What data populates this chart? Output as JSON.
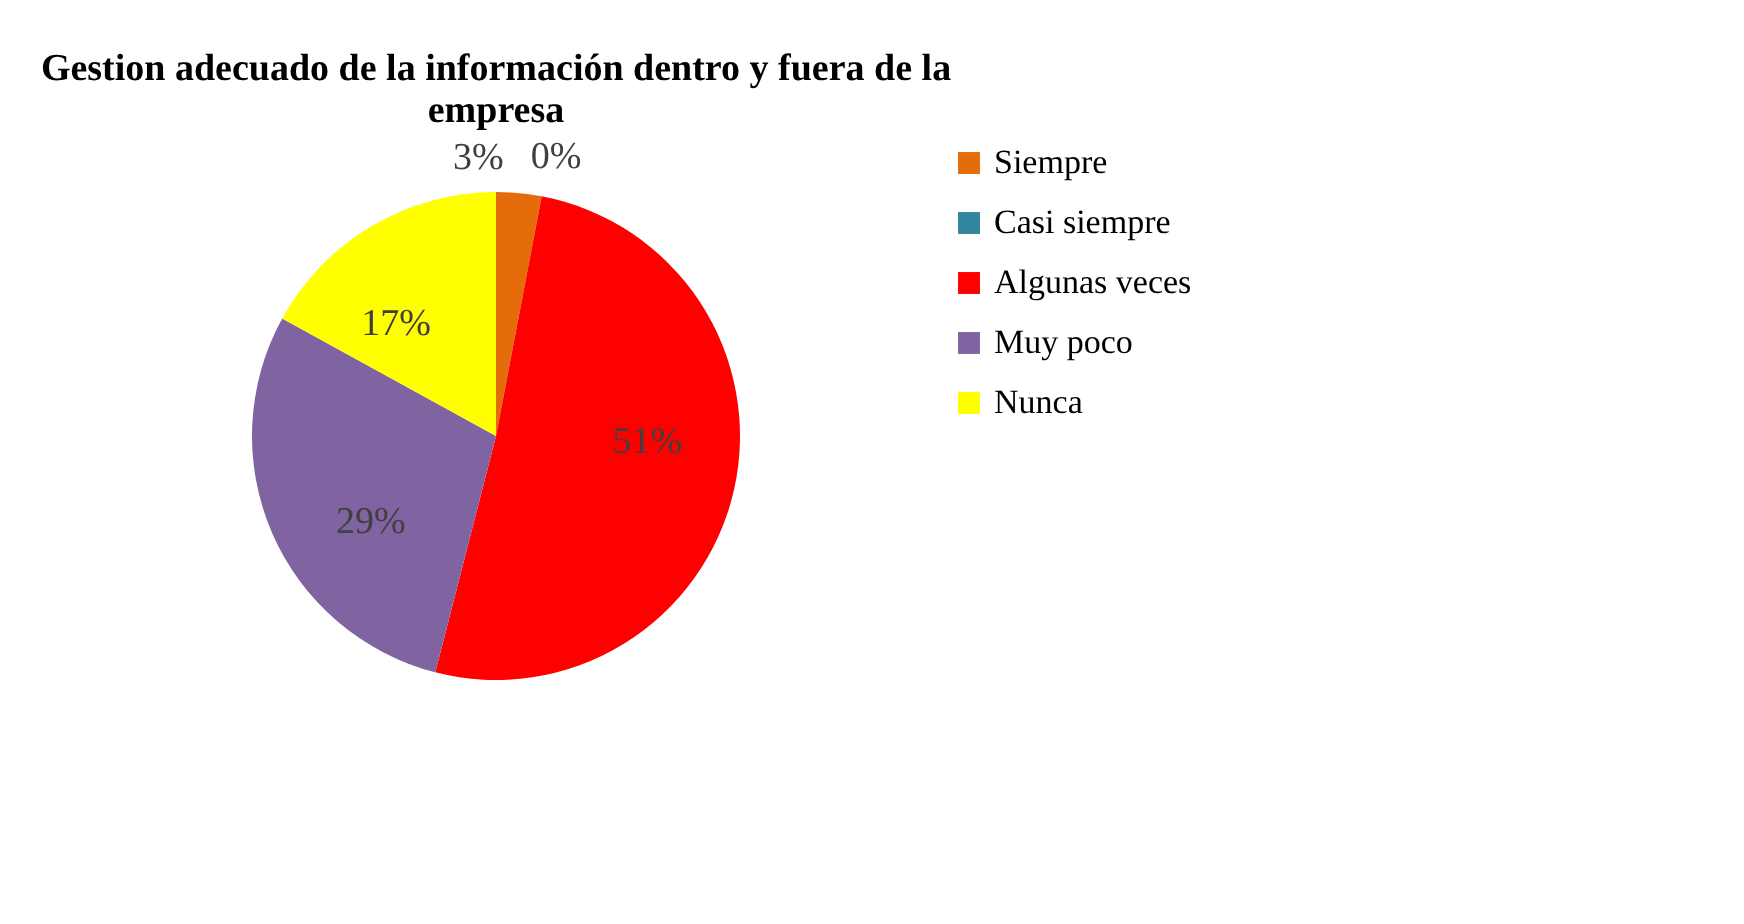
{
  "chart_data": {
    "type": "pie",
    "title": "Gestion adecuado de la información dentro y fuera de la empresa",
    "categories": [
      "Siempre",
      "Casi siempre",
      "Algunas veces",
      "Muy poco",
      "Nunca"
    ],
    "values": [
      3,
      0,
      51,
      29,
      17
    ],
    "colors": [
      "#e46c0a",
      "#31859c",
      "#ff0000",
      "#8064a2",
      "#ffff00"
    ],
    "value_labels": [
      "3%",
      "0%",
      "51%",
      "29%",
      "17%"
    ],
    "legend": "right"
  }
}
